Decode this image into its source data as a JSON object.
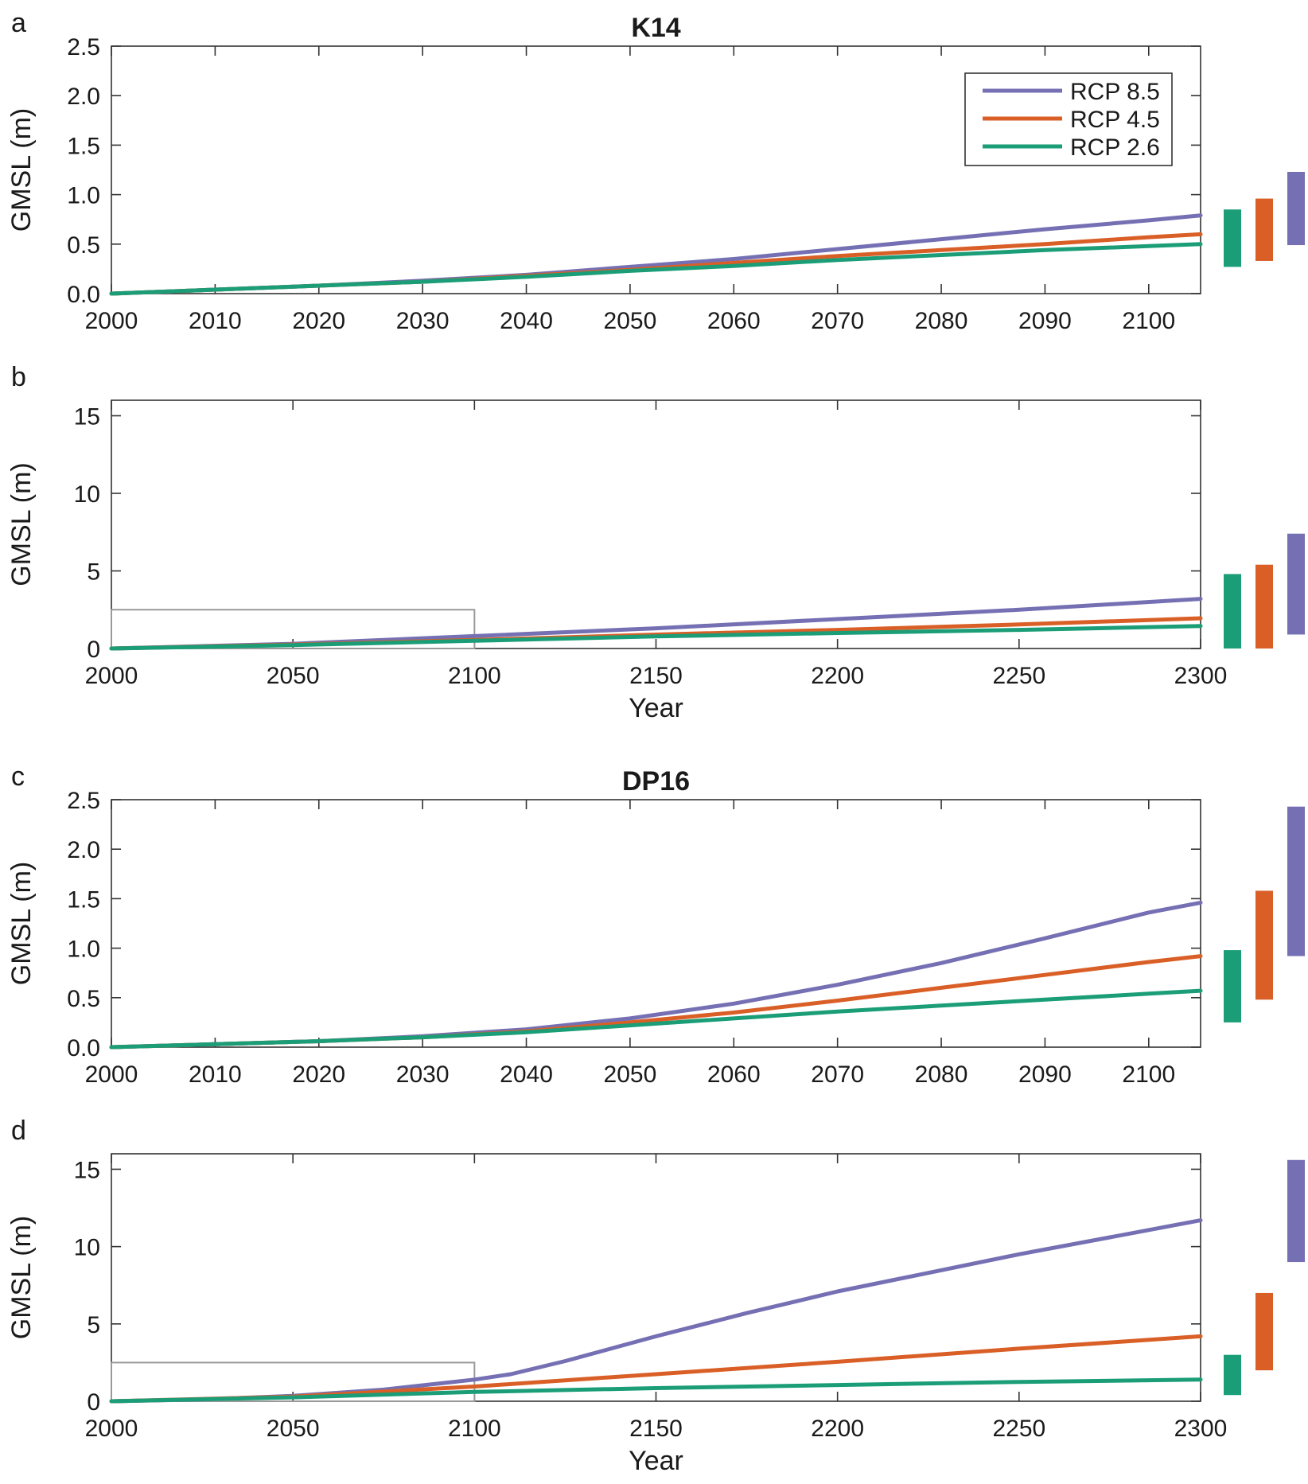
{
  "colors": {
    "rcp85": "#7570b3",
    "rcp45": "#d95f27",
    "rcp26": "#1b9e77",
    "axis": "#333333",
    "inset_box": "#999999"
  },
  "legend": {
    "placement": "top-right",
    "entries": [
      {
        "key": "rcp85",
        "label": "RCP 8.5"
      },
      {
        "key": "rcp45",
        "label": "RCP 4.5"
      },
      {
        "key": "rcp26",
        "label": "RCP 2.6"
      }
    ]
  },
  "chart_data": [
    {
      "id": "a",
      "letter": "a",
      "title": "K14",
      "type": "line",
      "ylabel": "GMSL (m)",
      "xlabel": "",
      "xlim": [
        2000,
        2105
      ],
      "ylim": [
        0,
        2.5
      ],
      "xticks": [
        2000,
        2010,
        2020,
        2030,
        2040,
        2050,
        2060,
        2070,
        2080,
        2090,
        2100
      ],
      "yticks": [
        "0.0",
        "0.5",
        "1.0",
        "1.5",
        "2.0",
        "2.5"
      ],
      "show_legend": true,
      "series": [
        {
          "key": "rcp85",
          "name": "RCP 8.5",
          "x": [
            2000,
            2010,
            2020,
            2030,
            2040,
            2050,
            2060,
            2070,
            2080,
            2090,
            2100,
            2105
          ],
          "y": [
            0,
            0.04,
            0.08,
            0.13,
            0.19,
            0.27,
            0.35,
            0.45,
            0.55,
            0.65,
            0.74,
            0.79
          ]
        },
        {
          "key": "rcp45",
          "name": "RCP 4.5",
          "x": [
            2000,
            2010,
            2020,
            2030,
            2040,
            2050,
            2060,
            2070,
            2080,
            2090,
            2100,
            2105
          ],
          "y": [
            0,
            0.04,
            0.08,
            0.12,
            0.18,
            0.24,
            0.31,
            0.38,
            0.44,
            0.5,
            0.57,
            0.6
          ]
        },
        {
          "key": "rcp26",
          "name": "RCP 2.6",
          "x": [
            2000,
            2010,
            2020,
            2030,
            2040,
            2050,
            2060,
            2070,
            2080,
            2090,
            2100,
            2105
          ],
          "y": [
            0,
            0.04,
            0.08,
            0.12,
            0.17,
            0.23,
            0.28,
            0.34,
            0.39,
            0.44,
            0.48,
            0.5
          ]
        }
      ],
      "ranges": [
        {
          "key": "rcp26",
          "low": 0.27,
          "high": 0.85
        },
        {
          "key": "rcp45",
          "low": 0.33,
          "high": 0.96
        },
        {
          "key": "rcp85",
          "low": 0.49,
          "high": 1.23
        }
      ],
      "inset_box": null
    },
    {
      "id": "b",
      "letter": "b",
      "title": "",
      "type": "line",
      "ylabel": "GMSL (m)",
      "xlabel": "Year",
      "xlim": [
        2000,
        2300
      ],
      "ylim": [
        0,
        16
      ],
      "xticks": [
        2000,
        2050,
        2100,
        2150,
        2200,
        2250,
        2300
      ],
      "yticks": [
        "0",
        "5",
        "10",
        "15"
      ],
      "show_legend": false,
      "series": [
        {
          "key": "rcp85",
          "name": "RCP 8.5",
          "x": [
            2000,
            2050,
            2100,
            2150,
            2200,
            2250,
            2300
          ],
          "y": [
            0,
            0.3,
            0.8,
            1.3,
            1.9,
            2.5,
            3.2
          ]
        },
        {
          "key": "rcp45",
          "name": "RCP 4.5",
          "x": [
            2000,
            2050,
            2100,
            2150,
            2200,
            2250,
            2300
          ],
          "y": [
            0,
            0.25,
            0.55,
            0.9,
            1.2,
            1.55,
            1.95
          ]
        },
        {
          "key": "rcp26",
          "name": "RCP 2.6",
          "x": [
            2000,
            2050,
            2100,
            2150,
            2200,
            2250,
            2300
          ],
          "y": [
            0,
            0.22,
            0.5,
            0.78,
            1.0,
            1.2,
            1.45
          ]
        }
      ],
      "ranges": [
        {
          "key": "rcp26",
          "low": 0.0,
          "high": 4.8
        },
        {
          "key": "rcp45",
          "low": 0.0,
          "high": 5.4
        },
        {
          "key": "rcp85",
          "low": 0.9,
          "high": 7.4
        }
      ],
      "inset_box": {
        "x": [
          2000,
          2100
        ],
        "y": [
          0,
          2.5
        ]
      }
    },
    {
      "id": "c",
      "letter": "c",
      "title": "DP16",
      "type": "line",
      "ylabel": "GMSL (m)",
      "xlabel": "",
      "xlim": [
        2000,
        2105
      ],
      "ylim": [
        0,
        2.5
      ],
      "xticks": [
        2000,
        2010,
        2020,
        2030,
        2040,
        2050,
        2060,
        2070,
        2080,
        2090,
        2100
      ],
      "yticks": [
        "0.0",
        "0.5",
        "1.0",
        "1.5",
        "2.0",
        "2.5"
      ],
      "show_legend": false,
      "series": [
        {
          "key": "rcp85",
          "name": "RCP 8.5",
          "x": [
            2000,
            2010,
            2020,
            2030,
            2040,
            2050,
            2060,
            2070,
            2080,
            2090,
            2100,
            2105
          ],
          "y": [
            0,
            0.03,
            0.06,
            0.11,
            0.18,
            0.29,
            0.44,
            0.63,
            0.85,
            1.1,
            1.36,
            1.46
          ]
        },
        {
          "key": "rcp45",
          "name": "RCP 4.5",
          "x": [
            2000,
            2010,
            2020,
            2030,
            2040,
            2050,
            2060,
            2070,
            2080,
            2090,
            2100,
            2105
          ],
          "y": [
            0,
            0.03,
            0.06,
            0.1,
            0.16,
            0.25,
            0.35,
            0.47,
            0.6,
            0.73,
            0.86,
            0.92
          ]
        },
        {
          "key": "rcp26",
          "name": "RCP 2.6",
          "x": [
            2000,
            2010,
            2020,
            2030,
            2040,
            2050,
            2060,
            2070,
            2080,
            2090,
            2100,
            2105
          ],
          "y": [
            0,
            0.03,
            0.06,
            0.1,
            0.15,
            0.22,
            0.29,
            0.36,
            0.42,
            0.48,
            0.54,
            0.57
          ]
        }
      ],
      "ranges": [
        {
          "key": "rcp26",
          "low": 0.25,
          "high": 0.98
        },
        {
          "key": "rcp45",
          "low": 0.48,
          "high": 1.58
        },
        {
          "key": "rcp85",
          "low": 0.92,
          "high": 2.43
        }
      ],
      "inset_box": null
    },
    {
      "id": "d",
      "letter": "d",
      "title": "",
      "type": "line",
      "ylabel": "GMSL (m)",
      "xlabel": "Year",
      "xlim": [
        2000,
        2300
      ],
      "ylim": [
        0,
        16
      ],
      "xticks": [
        2000,
        2050,
        2100,
        2150,
        2200,
        2250,
        2300
      ],
      "yticks": [
        "0",
        "5",
        "10",
        "15"
      ],
      "show_legend": false,
      "series": [
        {
          "key": "rcp85",
          "name": "RCP 8.5",
          "x": [
            2000,
            2025,
            2050,
            2075,
            2100,
            2110,
            2125,
            2150,
            2175,
            2200,
            2225,
            2250,
            2275,
            2300
          ],
          "y": [
            0,
            0.12,
            0.35,
            0.75,
            1.4,
            1.75,
            2.6,
            4.2,
            5.7,
            7.1,
            8.3,
            9.5,
            10.6,
            11.7
          ]
        },
        {
          "key": "rcp45",
          "name": "RCP 4.5",
          "x": [
            2000,
            2050,
            2100,
            2150,
            2200,
            2250,
            2300
          ],
          "y": [
            0,
            0.3,
            0.95,
            1.75,
            2.55,
            3.4,
            4.2
          ]
        },
        {
          "key": "rcp26",
          "name": "RCP 2.6",
          "x": [
            2000,
            2050,
            2100,
            2150,
            2200,
            2250,
            2300
          ],
          "y": [
            0,
            0.25,
            0.6,
            0.85,
            1.05,
            1.25,
            1.4
          ]
        }
      ],
      "ranges": [
        {
          "key": "rcp26",
          "low": 0.4,
          "high": 3.0
        },
        {
          "key": "rcp45",
          "low": 2.0,
          "high": 7.0
        },
        {
          "key": "rcp85",
          "low": 9.0,
          "high": 15.6
        }
      ],
      "inset_box": {
        "x": [
          2000,
          2100
        ],
        "y": [
          0,
          2.5
        ]
      }
    }
  ]
}
